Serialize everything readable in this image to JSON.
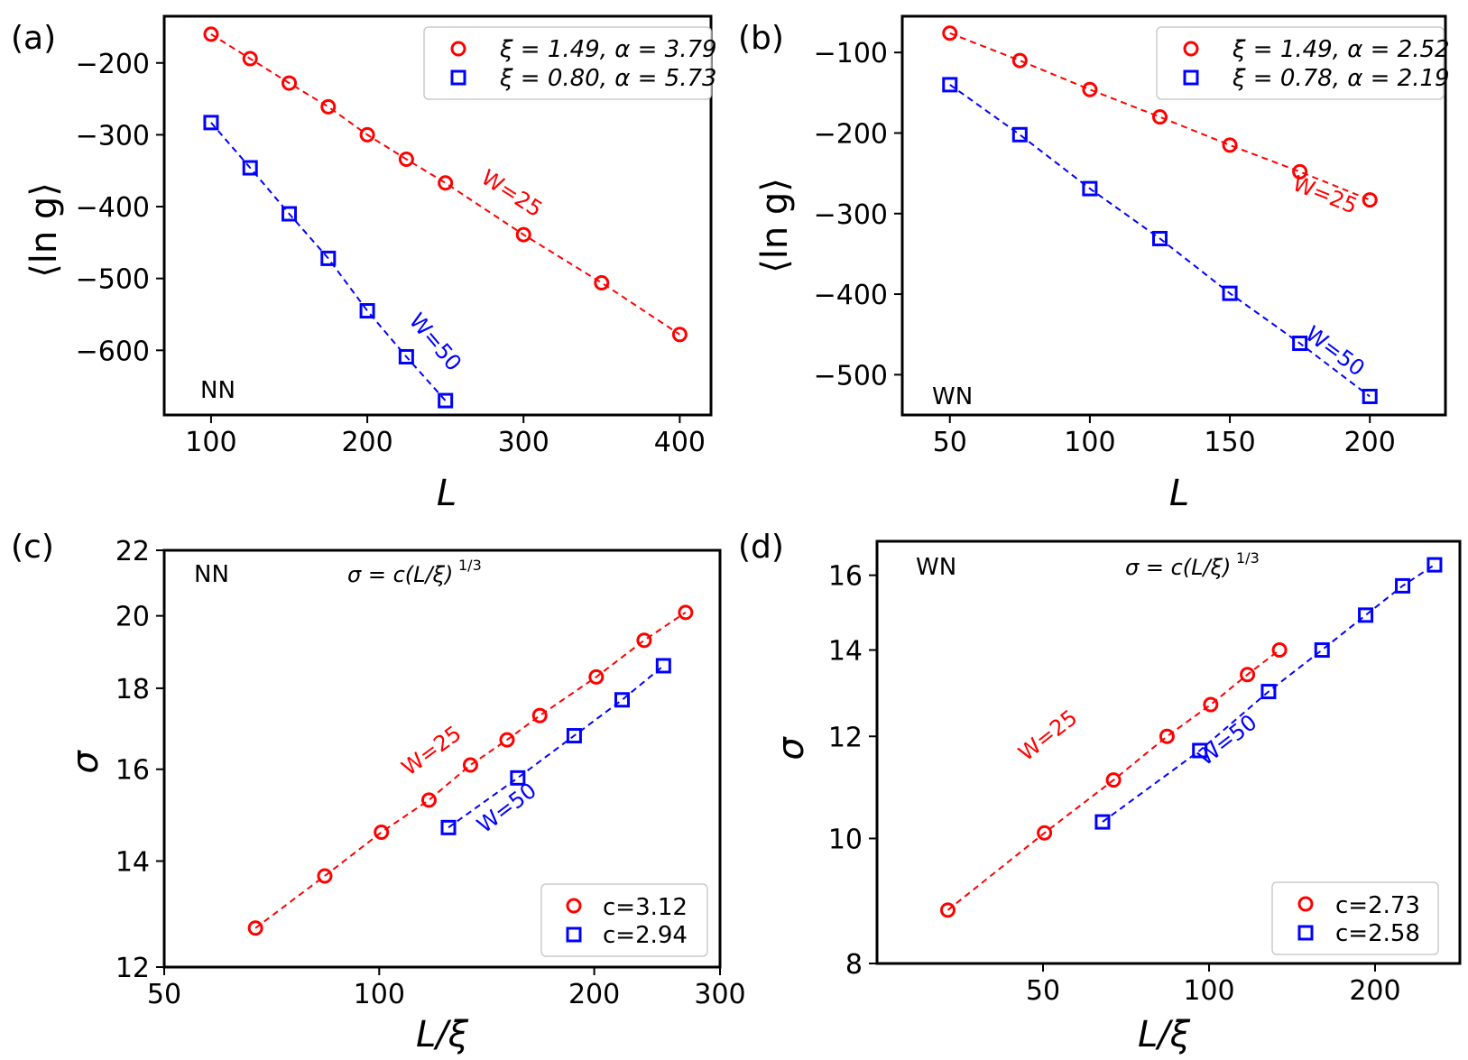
{
  "colors": {
    "red": "#ff0000",
    "blue": "#0000ff",
    "black": "#000000"
  },
  "chart_data": [
    {
      "panel": "(a)",
      "type": "scatter",
      "xlabel": "L",
      "ylabel": "⟨ln g⟩",
      "x_scale": "linear",
      "y_scale": "linear",
      "xlim": [
        70,
        420
      ],
      "ylim": [
        -690,
        -135
      ],
      "xticks": [
        100,
        200,
        300,
        400
      ],
      "xtick_labels": [
        "100",
        "200",
        "300",
        "400"
      ],
      "yticks": [
        -200,
        -300,
        -400,
        -500,
        -600
      ],
      "ytick_labels": [
        "−200",
        "−300",
        "−400",
        "−500",
        "−600"
      ],
      "corner_label": "NN",
      "legend_position": "top-right",
      "grid": false,
      "series": [
        {
          "name": "ξ = 1.49, α = 3.79",
          "marker": "circle",
          "color": "#ff0000",
          "x": [
            100,
            125,
            150,
            175,
            200,
            225,
            250,
            300,
            350,
            400
          ],
          "y": [
            -160,
            -194,
            -228,
            -261,
            -300,
            -334,
            -367,
            -439,
            -506,
            -578
          ],
          "curve_label": "W=25",
          "curve_label_at": [
            290,
            -390
          ]
        },
        {
          "name": "ξ = 0.80, α = 5.73",
          "marker": "square",
          "color": "#0000ff",
          "x": [
            100,
            125,
            150,
            175,
            200,
            225,
            250
          ],
          "y": [
            -283,
            -346,
            -410,
            -472,
            -545,
            -609,
            -670
          ],
          "curve_label": "W=50",
          "curve_label_at": [
            240,
            -595
          ]
        }
      ]
    },
    {
      "panel": "(b)",
      "type": "scatter",
      "xlabel": "L",
      "ylabel": "⟨ln g⟩",
      "x_scale": "linear",
      "y_scale": "linear",
      "xlim": [
        33,
        227
      ],
      "ylim": [
        -550,
        -55
      ],
      "xticks": [
        50,
        100,
        150,
        200
      ],
      "xtick_labels": [
        "50",
        "100",
        "150",
        "200"
      ],
      "yticks": [
        -100,
        -200,
        -300,
        -400,
        -500
      ],
      "ytick_labels": [
        "−100",
        "−200",
        "−300",
        "−400",
        "−500"
      ],
      "corner_label": "WN",
      "legend_position": "top-right",
      "grid": false,
      "series": [
        {
          "name": "ξ = 1.49, α = 2.52",
          "marker": "circle",
          "color": "#ff0000",
          "x": [
            50,
            75,
            100,
            125,
            150,
            175,
            200
          ],
          "y": [
            -76,
            -110,
            -146,
            -180,
            -215,
            -248,
            -283
          ],
          "curve_label": "W=25",
          "curve_label_at": [
            183,
            -285
          ]
        },
        {
          "name": "ξ = 0.78, α = 2.19",
          "marker": "square",
          "color": "#0000ff",
          "x": [
            50,
            75,
            100,
            125,
            150,
            175,
            200
          ],
          "y": [
            -140,
            -202,
            -269,
            -331,
            -399,
            -461,
            -527
          ],
          "curve_label": "W=50",
          "curve_label_at": [
            186,
            -478
          ]
        }
      ]
    },
    {
      "panel": "(c)",
      "type": "scatter",
      "xlabel": "L/ξ",
      "ylabel": "σ",
      "x_scale": "log",
      "y_scale": "log",
      "xlim": [
        50,
        300
      ],
      "ylim": [
        12,
        22
      ],
      "xticks": [
        50,
        100,
        200,
        300
      ],
      "xtick_labels": [
        "50",
        "100",
        "200",
        "300"
      ],
      "yticks": [
        12,
        14,
        16,
        18,
        20,
        22
      ],
      "ytick_labels": [
        "12",
        "14",
        "16",
        "18",
        "20",
        "22"
      ],
      "corner_label": "NN",
      "formula": "σ = c(L/ξ)",
      "formula_exponent": "1/3",
      "legend_position": "bottom-right",
      "grid": false,
      "series": [
        {
          "name": "c=3.12",
          "marker": "circle",
          "color": "#ff0000",
          "x": [
            67.1,
            83.9,
            100.7,
            117.4,
            134.2,
            151.0,
            167.8,
            201.3,
            234.9,
            268.5
          ],
          "y": [
            12.7,
            13.7,
            14.6,
            15.3,
            16.1,
            16.7,
            17.3,
            18.3,
            19.3,
            20.1
          ],
          "curve_label": "W=25",
          "curve_label_at": [
            120,
            16.3
          ]
        },
        {
          "name": "c=2.94",
          "marker": "square",
          "color": "#0000ff",
          "x": [
            125,
            156.3,
            187.5,
            218.8,
            250
          ],
          "y": [
            14.7,
            15.8,
            16.8,
            17.7,
            18.6
          ],
          "curve_label": "W=50",
          "curve_label_at": [
            153,
            15.0
          ]
        }
      ]
    },
    {
      "panel": "(d)",
      "type": "scatter",
      "xlabel": "L/ξ",
      "ylabel": "σ",
      "x_scale": "log",
      "y_scale": "log",
      "xlim": [
        25,
        285
      ],
      "ylim": [
        8,
        17
      ],
      "xticks": [
        50,
        100,
        200
      ],
      "xtick_labels": [
        "50",
        "100",
        "200"
      ],
      "yticks": [
        8,
        10,
        12,
        14,
        16
      ],
      "ytick_labels": [
        "8",
        "10",
        "12",
        "14",
        "16"
      ],
      "corner_label": "WN",
      "formula": "σ = c(L/ξ)",
      "formula_exponent": "1/3",
      "legend_position": "bottom-right",
      "grid": false,
      "series": [
        {
          "name": "c=2.73",
          "marker": "circle",
          "color": "#ff0000",
          "x": [
            33.6,
            50.3,
            67.1,
            83.9,
            100.7,
            117.4,
            134.2
          ],
          "y": [
            8.8,
            10.1,
            11.1,
            12.0,
            12.7,
            13.4,
            14.0
          ],
          "curve_label": "W=25",
          "curve_label_at": [
            52,
            11.9
          ]
        },
        {
          "name": "c=2.58",
          "marker": "square",
          "color": "#0000ff",
          "x": [
            64.1,
            96.2,
            128.2,
            160.3,
            192.3,
            224.4,
            256.4
          ],
          "y": [
            10.3,
            11.7,
            13.0,
            14.0,
            14.9,
            15.7,
            16.3
          ],
          "curve_label": "W=50",
          "curve_label_at": [
            110,
            11.8
          ]
        }
      ]
    }
  ]
}
